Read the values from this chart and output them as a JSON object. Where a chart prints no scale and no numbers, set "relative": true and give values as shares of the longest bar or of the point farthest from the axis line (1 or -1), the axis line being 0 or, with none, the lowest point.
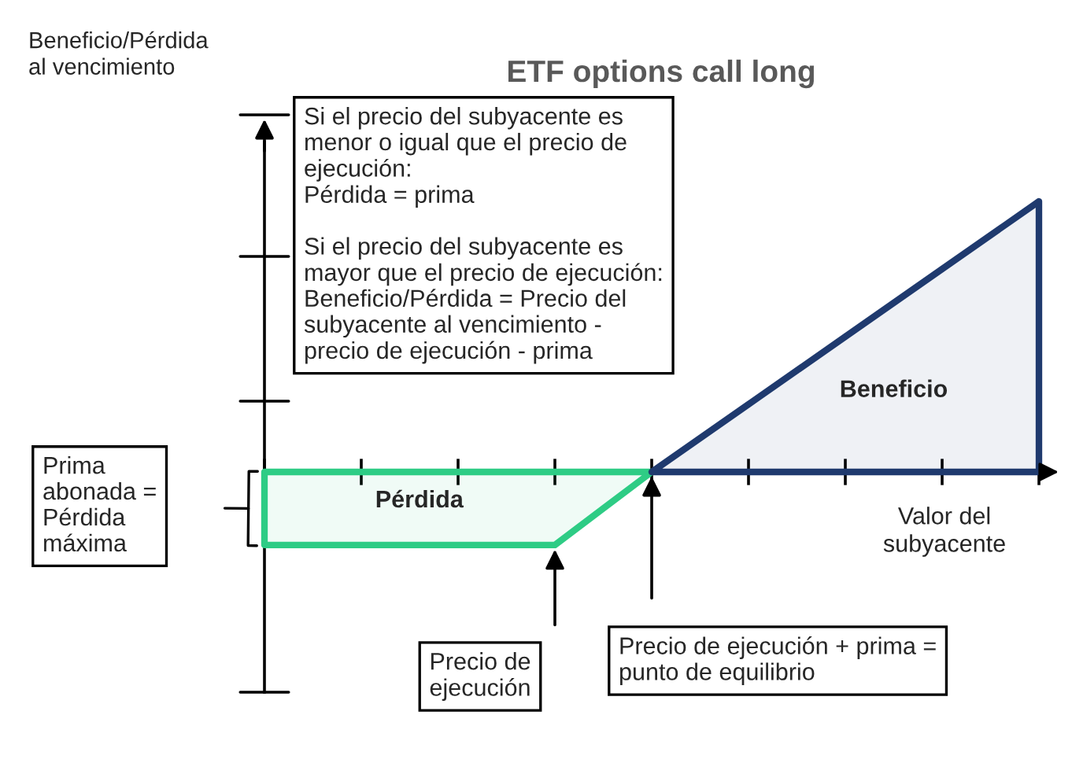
{
  "chart_data": {
    "type": "area",
    "title": "ETF options call long",
    "xlabel": "Valor del\nsubyacente",
    "relative": true,
    "categories": [
      null,
      null,
      null,
      null,
      null,
      null,
      null,
      null,
      null
    ],
    "series": [
      {
        "name": "Pérdida",
        "color": "#2ecc85",
        "values": [
          -0.27,
          -0.27,
          -0.27,
          -0.27,
          0,
          null,
          null,
          null,
          null
        ]
      },
      {
        "name": "Beneficio",
        "color": "#1f3a6e",
        "values": [
          null,
          null,
          null,
          null,
          0,
          0.25,
          0.5,
          0.75,
          1
        ]
      }
    ],
    "annotations": [
      "Si el precio del subyacente es\nmenor o igual que el precio de\nejecución:\nPérdida = prima\n\nSi el precio del subyacente es\nmayor que el precio de ejecución:\nBeneficio/Pérdida = Precio del\nsubyacente al vencimiento -\nprecio de ejecución - prima",
      "Prima\nabonada =\nPérdida\nmáxima",
      "Precio de\nejecución",
      "Precio de ejecución + prima =\npunto de equilibrio",
      "Beneficio/Pérdida\nal vencimiento"
    ]
  }
}
